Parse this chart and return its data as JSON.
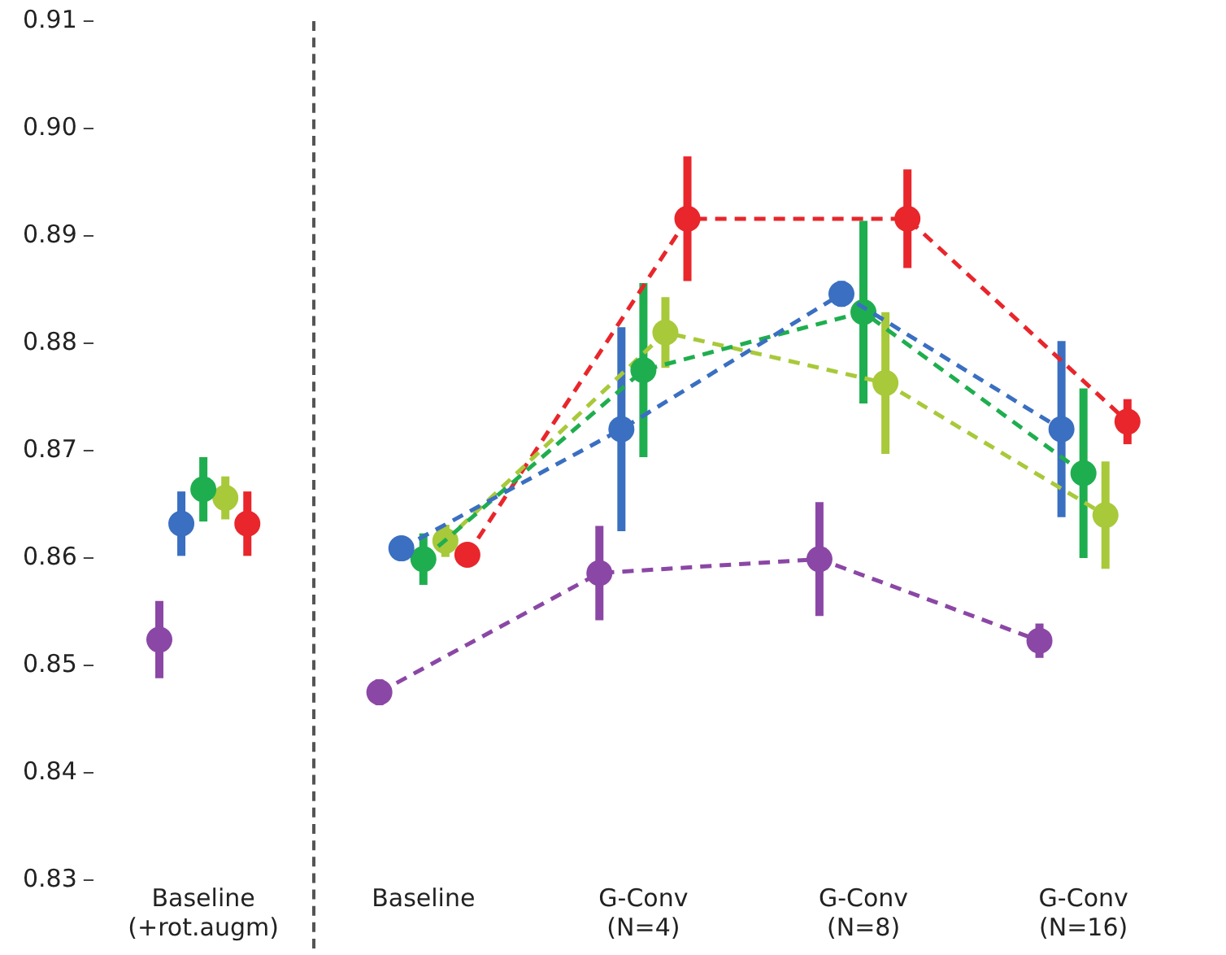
{
  "chart_data": {
    "type": "line",
    "categories": [
      "Baseline\n(+rot.augm)",
      "Baseline",
      "G-Conv\n(N=4)",
      "G-Conv\n(N=8)",
      "G-Conv\n(N=16)"
    ],
    "series": [
      {
        "type": "line",
        "color": "#8b47a5",
        "values": [
          null,
          0.8475,
          0.8586,
          0.8599,
          0.8523
        ],
        "errors": [
          null,
          0.0012,
          0.0044,
          0.0053,
          0.0016
        ]
      },
      {
        "type": "line",
        "color": "#3a6fc1",
        "values": [
          null,
          0.8609,
          0.872,
          0.8846,
          0.872
        ],
        "errors": [
          null,
          0.0005,
          0.0095,
          0.0012,
          0.0082
        ]
      },
      {
        "type": "line",
        "color": "#1fae4f",
        "values": [
          null,
          0.8599,
          0.8775,
          0.8829,
          0.8679
        ],
        "errors": [
          null,
          0.0024,
          0.0081,
          0.0085,
          0.0079
        ]
      },
      {
        "type": "line",
        "color": "#a8c93a",
        "values": [
          null,
          0.8616,
          0.881,
          0.8763,
          0.864
        ],
        "errors": [
          null,
          0.0015,
          0.0033,
          0.0066,
          0.005
        ]
      },
      {
        "type": "line",
        "color": "#e8262b",
        "values": [
          null,
          0.8603,
          0.8916,
          0.8916,
          0.8727
        ],
        "errors": [
          null,
          0.0005,
          0.0058,
          0.0046,
          0.0021
        ]
      },
      {
        "type": "scatter",
        "color": "#8b47a5",
        "values": [
          0.8524,
          null,
          null,
          null,
          null
        ],
        "errors": [
          0.0036,
          null,
          null,
          null,
          null
        ]
      },
      {
        "type": "scatter",
        "color": "#3a6fc1",
        "values": [
          0.8632,
          null,
          null,
          null,
          null
        ],
        "errors": [
          0.003,
          null,
          null,
          null,
          null
        ]
      },
      {
        "type": "scatter",
        "color": "#1fae4f",
        "values": [
          0.8664,
          null,
          null,
          null,
          null
        ],
        "errors": [
          0.003,
          null,
          null,
          null,
          null
        ]
      },
      {
        "type": "scatter",
        "color": "#a8c93a",
        "values": [
          0.8656,
          null,
          null,
          null,
          null
        ],
        "errors": [
          0.002,
          null,
          null,
          null,
          null
        ]
      },
      {
        "type": "scatter",
        "color": "#e8262b",
        "values": [
          0.8632,
          null,
          null,
          null,
          null
        ],
        "errors": [
          0.003,
          null,
          null,
          null,
          null
        ]
      }
    ],
    "ylim": [
      0.83,
      0.91
    ],
    "yticks": [
      0.83,
      0.84,
      0.85,
      0.86,
      0.87,
      0.88,
      0.89,
      {
        "value": 0.9,
        "label": "0.90"
      },
      0.91
    ],
    "grid": false,
    "legend": false,
    "marker": "circle",
    "line_style": "dashed"
  }
}
